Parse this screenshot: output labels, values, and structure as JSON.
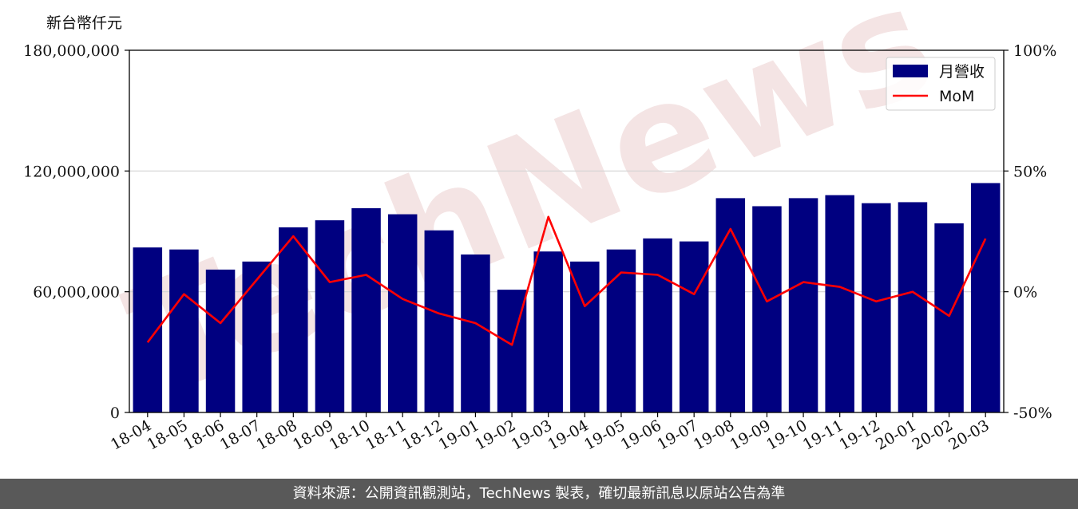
{
  "unit_label": "新台幣仟元",
  "footer_text": "資料來源：公開資訊觀測站，TechNews 製表，確切最新訊息以原站公告為準",
  "watermark": "TechNews",
  "colors": {
    "bar": "#000080",
    "line": "#ff0000",
    "grid": "#d3d3d3",
    "footer_bg": "#595959"
  },
  "chart_data": {
    "type": "bar",
    "categories": [
      "18-04",
      "18-05",
      "18-06",
      "18-07",
      "18-08",
      "18-09",
      "18-10",
      "18-11",
      "18-12",
      "19-01",
      "19-02",
      "19-03",
      "19-04",
      "19-05",
      "19-06",
      "19-07",
      "19-08",
      "19-09",
      "19-10",
      "19-11",
      "19-12",
      "20-01",
      "20-02",
      "20-03"
    ],
    "series": [
      {
        "name": "月營收",
        "type": "bar",
        "axis": "left",
        "values": [
          82000000,
          81000000,
          71000000,
          75000000,
          92000000,
          95500000,
          101500000,
          98500000,
          90500000,
          78500000,
          61000000,
          80000000,
          75000000,
          81000000,
          86500000,
          85000000,
          106500000,
          102500000,
          106500000,
          108000000,
          104000000,
          104500000,
          94000000,
          114000000
        ]
      },
      {
        "name": "MoM",
        "type": "line",
        "axis": "right",
        "values": [
          -21,
          -1,
          -13,
          5,
          23,
          4,
          7,
          -3,
          -9,
          -13,
          -22,
          31,
          -6,
          8,
          7,
          -1,
          26,
          -4,
          4,
          2,
          -4,
          0,
          -10,
          22
        ]
      }
    ],
    "yticks_left": [
      "0",
      "60,000,000",
      "120,000,000",
      "180,000,000"
    ],
    "yticks_right": [
      "-50%",
      "0%",
      "50%",
      "100%"
    ],
    "ylim_left": [
      0,
      180000000
    ],
    "ylim_right": [
      -50,
      100
    ],
    "grid": true,
    "legend_position": "top-right"
  }
}
